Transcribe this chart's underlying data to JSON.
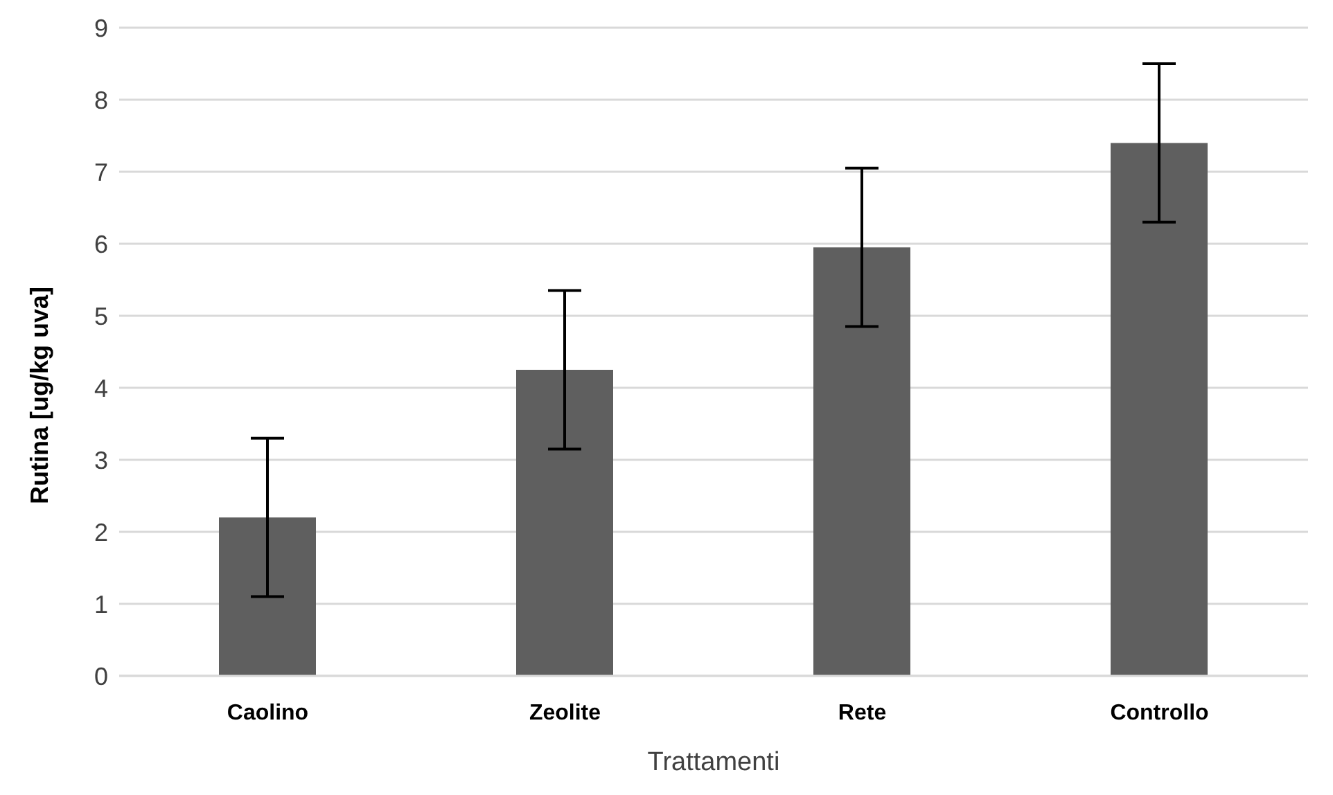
{
  "chart_data": {
    "type": "bar",
    "xlabel": "Trattamenti",
    "ylabel": "Rutina [ug/kg uva]",
    "categories": [
      "Caolino",
      "Zeolite",
      "Rete",
      "Controllo"
    ],
    "series": [
      {
        "color": "#5f5f5f",
        "values": [
          2.2,
          4.25,
          5.95,
          7.4
        ],
        "errors": [
          1.1,
          1.1,
          1.1,
          1.1
        ]
      }
    ],
    "ylim": [
      0,
      9
    ],
    "yticks": [
      0,
      1,
      2,
      3,
      4,
      5,
      6,
      7,
      8,
      9
    ],
    "grid": "y",
    "legend": false
  }
}
